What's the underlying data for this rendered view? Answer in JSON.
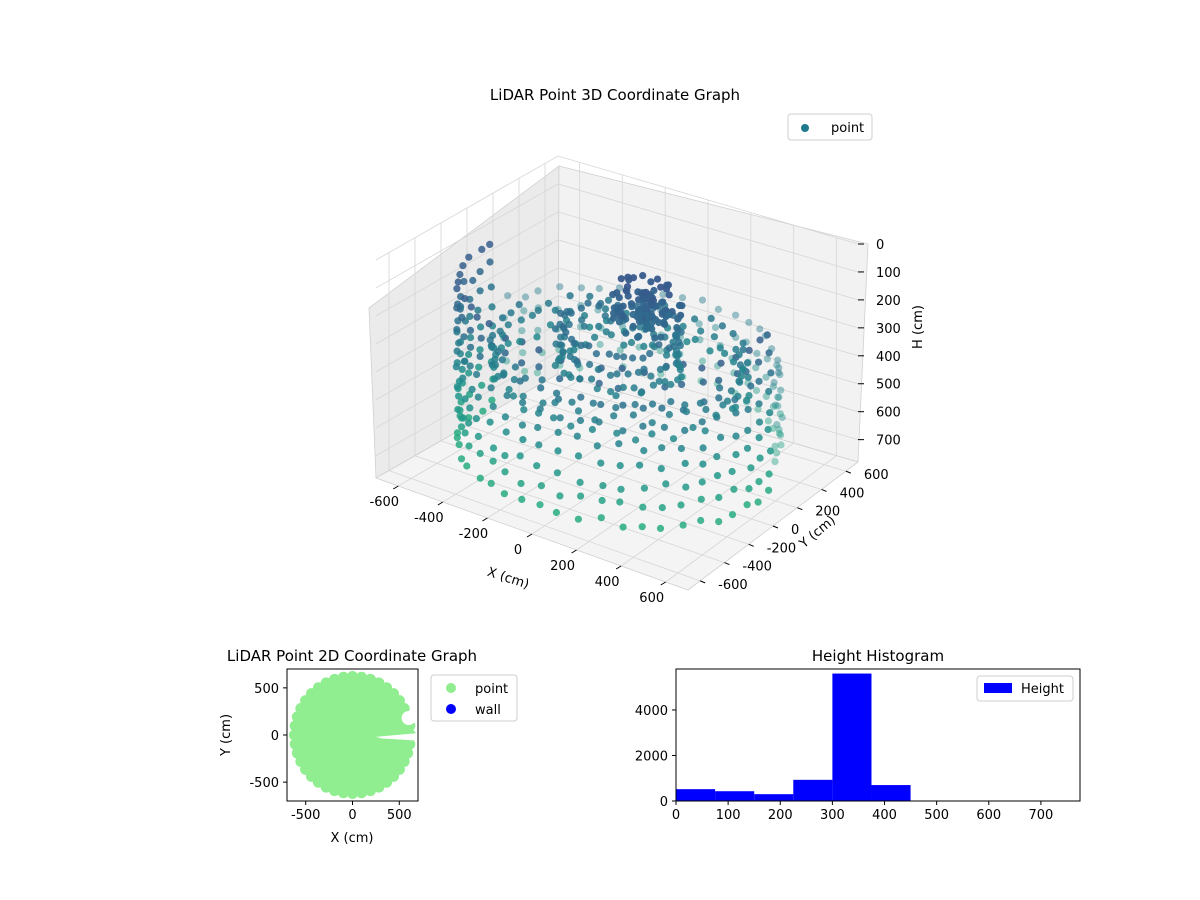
{
  "chart_data": [
    {
      "id": "lidar3d",
      "type": "scatter",
      "title": "LiDAR Point 3D Coordinate Graph",
      "xlabel": "X (cm)",
      "ylabel": "Y (cm)",
      "zlabel": "H (cm)",
      "xlim": [
        -700,
        700
      ],
      "ylim": [
        -700,
        700
      ],
      "zlim": [
        780,
        0
      ],
      "x_ticks": [
        -600,
        -400,
        -200,
        0,
        200,
        400,
        600
      ],
      "y_ticks": [
        -600,
        -400,
        -200,
        0,
        200,
        400,
        600
      ],
      "z_ticks": [
        0,
        100,
        200,
        300,
        400,
        500,
        600,
        700
      ],
      "colormap": "viridis",
      "grid": true,
      "legend": {
        "placement": "top-right",
        "entries": [
          {
            "label": "point",
            "color": "#21798f"
          }
        ]
      },
      "series": [
        {
          "name": "point",
          "description_of_structure": [
            {
              "ring_radius": 640,
              "h_values": [
                0,
                70,
                140,
                210,
                280,
                350,
                420,
                490,
                560,
                630,
                700
              ]
            },
            {
              "ring_radius": 500,
              "h_values": [
                330,
                380,
                430
              ]
            },
            {
              "ring_radius": 240,
              "h_values": [
                250,
                320,
                380
              ]
            },
            {
              "cluster_center": [
                80,
                60
              ],
              "h_values": [
                130,
                180,
                220
              ]
            }
          ]
        }
      ]
    },
    {
      "id": "lidar2d",
      "type": "scatter",
      "title": "LiDAR Point 2D Coordinate Graph",
      "xlabel": "X (cm)",
      "ylabel": "Y (cm)",
      "xlim": [
        -700,
        700
      ],
      "ylim": [
        -700,
        700
      ],
      "x_ticks": [
        -500,
        0,
        500
      ],
      "y_ticks": [
        -500,
        0,
        500
      ],
      "legend": {
        "placement": "outside-right",
        "entries": [
          {
            "label": "point",
            "color": "#90ee90"
          },
          {
            "label": "wall",
            "color": "#0000ff"
          }
        ]
      },
      "series": [
        {
          "name": "point",
          "color": "#90ee90",
          "shape": "disc",
          "radius": 640
        },
        {
          "name": "wall",
          "color": "#0000ff",
          "points": []
        }
      ]
    },
    {
      "id": "height_hist",
      "type": "bar",
      "title": "Height Histogram",
      "xlim": [
        0,
        775
      ],
      "ylim": [
        0,
        5800
      ],
      "x_ticks": [
        0,
        100,
        200,
        300,
        400,
        500,
        600,
        700
      ],
      "y_ticks": [
        0,
        2000,
        4000
      ],
      "bar_color": "#0000ff",
      "legend": {
        "placement": "top-right",
        "entries": [
          {
            "label": "Height",
            "color": "#0000ff"
          }
        ]
      },
      "bin_edges": [
        0,
        75,
        150,
        225,
        300,
        375,
        450,
        525,
        600,
        675,
        750
      ],
      "values": [
        520,
        430,
        300,
        930,
        5600,
        700,
        0,
        0,
        0,
        0
      ]
    }
  ]
}
